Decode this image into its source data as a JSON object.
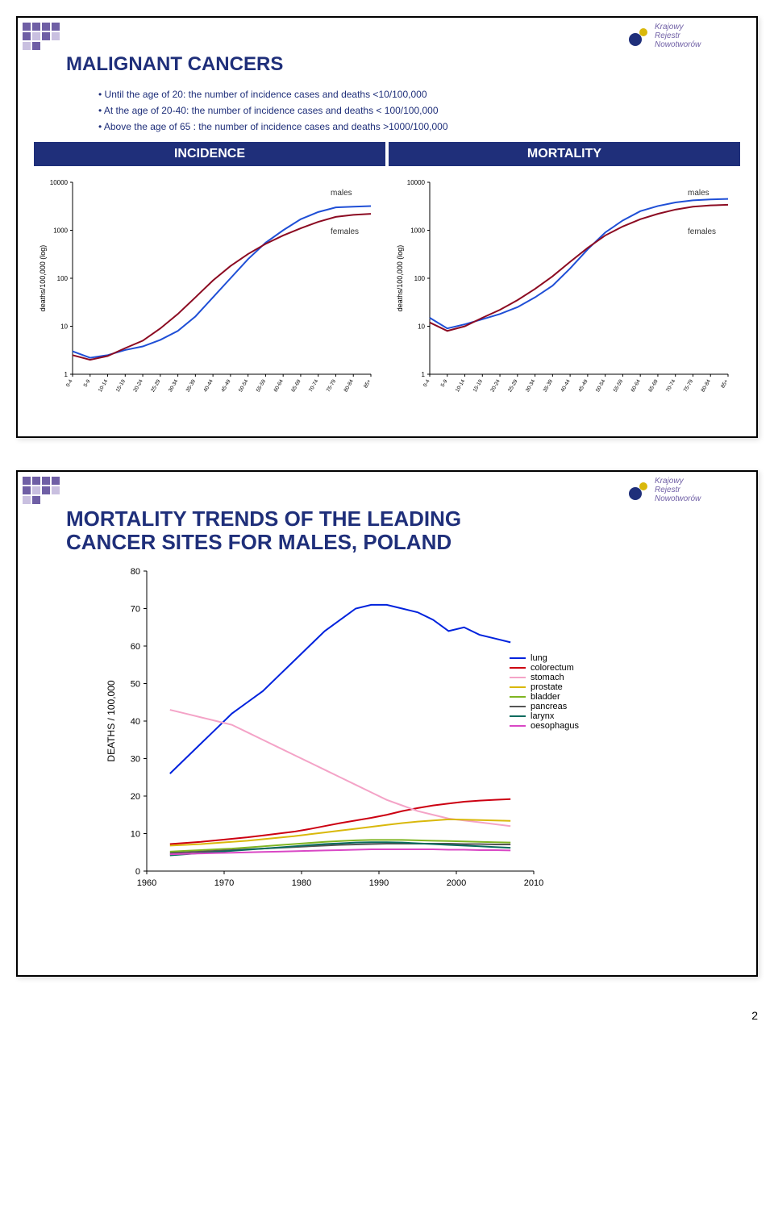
{
  "logo_text": "Krajowy\nRejestr\nNowotworów",
  "slide1": {
    "title": "MALIGNANT CANCERS",
    "bullets": [
      "Until the age of 20: the number of incidence cases and deaths  <10/100,000",
      "At the age of 20-40: the number of incidence cases and deaths < 100/100,000",
      "Above the age of 65 : the number of incidence cases and deaths >1000/100,000"
    ],
    "band_left": "INCIDENCE",
    "band_right": "MORTALITY",
    "age_categories": [
      "0-4",
      "5-9",
      "10-14",
      "15-19",
      "20-24",
      "25-29",
      "30-34",
      "35-39",
      "40-44",
      "45-49",
      "50-54",
      "55-59",
      "60-64",
      "65-69",
      "70-74",
      "75-79",
      "80-84",
      "85+"
    ],
    "y_ticks": [
      1,
      10,
      100,
      1000,
      10000
    ],
    "y_axis_label": "deaths/100,000 (log)",
    "label_males": "males",
    "label_females": "females",
    "chart_incidence": {
      "males": [
        3.0,
        2.2,
        2.5,
        3.2,
        3.8,
        5.2,
        8,
        16,
        40,
        100,
        250,
        550,
        1000,
        1700,
        2400,
        3000,
        3100,
        3200
      ],
      "females": [
        2.5,
        2.0,
        2.4,
        3.5,
        5.0,
        9,
        18,
        40,
        90,
        180,
        320,
        520,
        780,
        1100,
        1500,
        1900,
        2100,
        2200
      ],
      "color_m": "#1f4fd6",
      "color_f": "#8c0b22"
    },
    "chart_mortality": {
      "males": [
        15,
        9,
        11,
        14,
        18,
        25,
        40,
        70,
        160,
        400,
        900,
        1600,
        2500,
        3200,
        3800,
        4200,
        4400,
        4500
      ],
      "females": [
        12,
        8,
        10,
        15,
        22,
        35,
        60,
        110,
        220,
        430,
        780,
        1200,
        1700,
        2200,
        2700,
        3100,
        3300,
        3400
      ],
      "color_m": "#1f4fd6",
      "color_f": "#8c0b22"
    }
  },
  "slide2": {
    "title_l1": "MORTALITY TRENDS OF THE LEADING",
    "title_l2": "CANCER SITES FOR MALES, POLAND",
    "x_ticks": [
      1960,
      1970,
      1980,
      1990,
      2000,
      2010
    ],
    "y_ticks": [
      0,
      10,
      20,
      30,
      40,
      50,
      60,
      70,
      80
    ],
    "y_label": "DEATHS / 100,000",
    "years": [
      1963,
      1965,
      1967,
      1969,
      1971,
      1973,
      1975,
      1977,
      1979,
      1981,
      1983,
      1985,
      1987,
      1989,
      1991,
      1993,
      1995,
      1997,
      1999,
      2001,
      2003,
      2005,
      2007
    ],
    "series": {
      "lung": {
        "color": "#0022dd",
        "label": "lung",
        "values": [
          26,
          30,
          34,
          38,
          42,
          45,
          48,
          52,
          56,
          60,
          64,
          67,
          70,
          71,
          71,
          70,
          69,
          67,
          64,
          65,
          63,
          62,
          61
        ]
      },
      "colorectum": {
        "color": "#cc0011",
        "label": "colorectum",
        "values": [
          7.2,
          7.5,
          7.8,
          8.2,
          8.6,
          9.0,
          9.5,
          10,
          10.5,
          11.2,
          12,
          12.8,
          13.5,
          14.2,
          15,
          16,
          16.8,
          17.5,
          18,
          18.5,
          18.8,
          19,
          19.2
        ]
      },
      "stomach": {
        "color": "#f4a3c7",
        "label": "stomach",
        "values": [
          43,
          42,
          41,
          40,
          39,
          37,
          35,
          33,
          31,
          29,
          27,
          25,
          23,
          21,
          19,
          17.5,
          16,
          15,
          14,
          13.5,
          13,
          12.5,
          12
        ]
      },
      "prostate": {
        "color": "#d9b80b",
        "label": "prostate",
        "values": [
          6.8,
          7,
          7.2,
          7.5,
          7.8,
          8.1,
          8.5,
          8.9,
          9.3,
          9.8,
          10.3,
          10.8,
          11.3,
          11.8,
          12.3,
          12.8,
          13.2,
          13.5,
          13.8,
          13.7,
          13.6,
          13.5,
          13.4
        ]
      },
      "bladder": {
        "color": "#7fb522",
        "label": "bladder",
        "values": [
          5.2,
          5.4,
          5.6,
          5.8,
          6.0,
          6.3,
          6.6,
          6.9,
          7.2,
          7.5,
          7.8,
          8.0,
          8.2,
          8.3,
          8.3,
          8.3,
          8.2,
          8.1,
          8.0,
          7.9,
          7.8,
          7.7,
          7.6
        ]
      },
      "pancreas": {
        "color": "#555555",
        "label": "pancreas",
        "values": [
          4.8,
          5.0,
          5.2,
          5.4,
          5.6,
          5.8,
          6.0,
          6.2,
          6.4,
          6.6,
          6.8,
          7.0,
          7.1,
          7.2,
          7.3,
          7.3,
          7.3,
          7.3,
          7.3,
          7.2,
          7.2,
          7.1,
          7.1
        ]
      },
      "larynx": {
        "color": "#0a6b5e",
        "label": "larynx",
        "values": [
          4.2,
          4.5,
          4.8,
          5.1,
          5.4,
          5.7,
          6.0,
          6.3,
          6.6,
          6.9,
          7.2,
          7.4,
          7.6,
          7.7,
          7.7,
          7.6,
          7.4,
          7.2,
          7.0,
          6.8,
          6.6,
          6.4,
          6.2
        ]
      },
      "oesophagus": {
        "color": "#d947c5",
        "label": "oesophagus",
        "values": [
          4.5,
          4.6,
          4.7,
          4.8,
          4.9,
          5.0,
          5.1,
          5.2,
          5.3,
          5.4,
          5.5,
          5.6,
          5.7,
          5.8,
          5.8,
          5.8,
          5.8,
          5.8,
          5.7,
          5.7,
          5.6,
          5.6,
          5.5
        ]
      }
    }
  },
  "page_number": "2"
}
